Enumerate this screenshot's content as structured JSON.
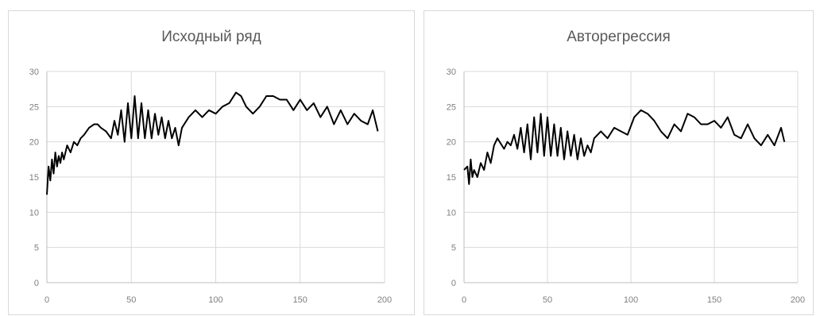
{
  "chart_data": [
    {
      "type": "line",
      "title": "Исходный ряд",
      "xlim": [
        0,
        200
      ],
      "ylim": [
        0,
        30
      ],
      "xticks": [
        0,
        50,
        100,
        150,
        200
      ],
      "yticks": [
        0,
        5,
        10,
        15,
        20,
        25,
        30
      ],
      "grid": true,
      "legend": "none",
      "line_color": "#000000",
      "grid_color": "#d9d9d9",
      "series": [
        {
          "x": [
            0,
            1,
            2,
            3,
            4,
            5,
            6,
            7,
            8,
            9,
            10,
            12,
            14,
            16,
            18,
            20,
            22,
            25,
            28,
            30,
            32,
            35,
            38,
            40,
            42,
            44,
            46,
            48,
            50,
            52,
            54,
            56,
            58,
            60,
            62,
            64,
            66,
            68,
            70,
            72,
            74,
            76,
            78,
            80,
            84,
            88,
            92,
            96,
            100,
            104,
            108,
            112,
            115,
            118,
            122,
            126,
            130,
            134,
            138,
            142,
            146,
            150,
            154,
            158,
            162,
            166,
            170,
            174,
            178,
            182,
            186,
            190,
            193,
            196
          ],
          "y": [
            12.5,
            16.5,
            14.5,
            17.5,
            15.5,
            18.5,
            16.5,
            18,
            17,
            18.5,
            17.5,
            19.5,
            18.5,
            20,
            19.5,
            20.5,
            21,
            22,
            22.5,
            22.5,
            22,
            21.5,
            20.5,
            23,
            21,
            24.5,
            20,
            25.5,
            20.5,
            26.5,
            20.5,
            25.5,
            20.5,
            24.5,
            20.5,
            24,
            21,
            23.5,
            20.5,
            23,
            20.5,
            22,
            19.5,
            22,
            23.5,
            24.5,
            23.5,
            24.5,
            24,
            25,
            25.5,
            27,
            26.5,
            25,
            24,
            25,
            26.5,
            26.5,
            26,
            26,
            24.5,
            26,
            24.5,
            25.5,
            23.5,
            25,
            22.5,
            24.5,
            22.5,
            24,
            23,
            22.5,
            24.5,
            21.5
          ]
        }
      ]
    },
    {
      "type": "line",
      "title": "Авторегрессия",
      "xlim": [
        0,
        200
      ],
      "ylim": [
        0,
        30
      ],
      "xticks": [
        0,
        50,
        100,
        150,
        200
      ],
      "yticks": [
        0,
        5,
        10,
        15,
        20,
        25,
        30
      ],
      "grid": true,
      "legend": "none",
      "line_color": "#000000",
      "grid_color": "#d9d9d9",
      "series": [
        {
          "x": [
            0,
            2,
            3,
            4,
            5,
            6,
            8,
            10,
            12,
            14,
            16,
            18,
            20,
            24,
            26,
            28,
            30,
            32,
            34,
            36,
            38,
            40,
            42,
            44,
            46,
            48,
            50,
            52,
            54,
            56,
            58,
            60,
            62,
            64,
            66,
            68,
            70,
            72,
            74,
            76,
            78,
            82,
            86,
            90,
            94,
            98,
            102,
            106,
            110,
            114,
            118,
            122,
            126,
            130,
            134,
            138,
            142,
            146,
            150,
            154,
            158,
            162,
            166,
            170,
            174,
            178,
            182,
            186,
            190,
            192
          ],
          "y": [
            16,
            16.5,
            14,
            17.5,
            15,
            16,
            15,
            17,
            16,
            18.5,
            17,
            19.5,
            20.5,
            19,
            20,
            19.5,
            21,
            19,
            22,
            18.5,
            22.5,
            17.5,
            23.5,
            18.5,
            24,
            18,
            23.5,
            18,
            22.5,
            18,
            22,
            17.5,
            21.5,
            18,
            21,
            17.5,
            20.5,
            18,
            19.5,
            18.5,
            20.5,
            21.5,
            20.5,
            22,
            21.5,
            21,
            23.5,
            24.5,
            24,
            23,
            21.5,
            20.5,
            22.5,
            21.5,
            24,
            23.5,
            22.5,
            22.5,
            23,
            22,
            23.5,
            21,
            20.5,
            22.5,
            20.5,
            19.5,
            21,
            19.5,
            22,
            20
          ]
        }
      ]
    }
  ]
}
